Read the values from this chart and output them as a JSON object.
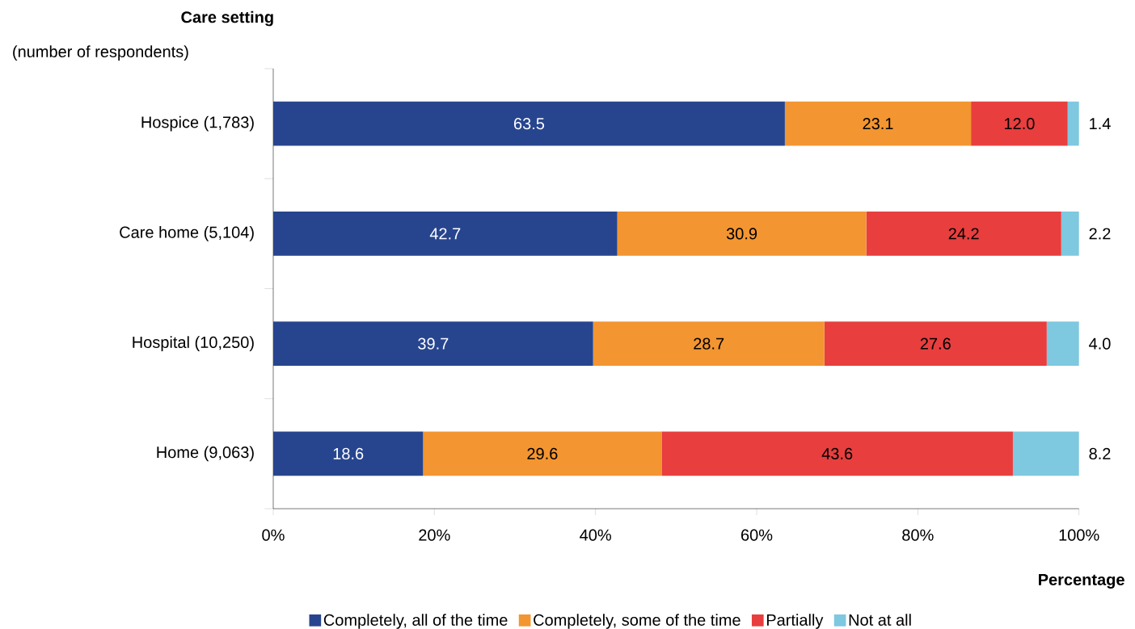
{
  "chart_data": {
    "type": "bar",
    "orientation": "horizontal",
    "stacked": true,
    "title": "Care setting",
    "subtitle": "(number of respondents)",
    "xlabel": "Percentage",
    "categories": [
      "Hospice (1,783)",
      "Care home (5,104)",
      "Hospital (10,250)",
      "Home (9,063)"
    ],
    "series": [
      {
        "name": "Completely, all of the time",
        "color": "#27458f",
        "values": [
          63.5,
          42.7,
          39.7,
          18.6
        ],
        "value_labels": [
          "63.5",
          "42.7",
          "39.7",
          "18.6"
        ]
      },
      {
        "name": "Completely, some of the time",
        "color": "#f39530",
        "values": [
          23.1,
          30.9,
          28.7,
          29.6
        ],
        "value_labels": [
          "23.1",
          "30.9",
          "28.7",
          "29.6"
        ]
      },
      {
        "name": "Partially",
        "color": "#e83e3e",
        "values": [
          12.0,
          24.2,
          27.6,
          43.6
        ],
        "value_labels": [
          "12.0",
          "24.2",
          "27.6",
          "43.6"
        ]
      },
      {
        "name": "Not at all",
        "color": "#7ec8e0",
        "values": [
          1.4,
          2.2,
          4.0,
          8.2
        ],
        "value_labels": [
          "1.4",
          "2.2",
          "4.0",
          "8.2"
        ]
      }
    ],
    "xlim": [
      0,
      100
    ],
    "xticks": [
      {
        "value": 0,
        "label": "0%"
      },
      {
        "value": 20,
        "label": "20%"
      },
      {
        "value": 40,
        "label": "40%"
      },
      {
        "value": 60,
        "label": "60%"
      },
      {
        "value": 80,
        "label": "80%"
      },
      {
        "value": 100,
        "label": "100%"
      }
    ],
    "legend": "bottom",
    "grid": false
  }
}
